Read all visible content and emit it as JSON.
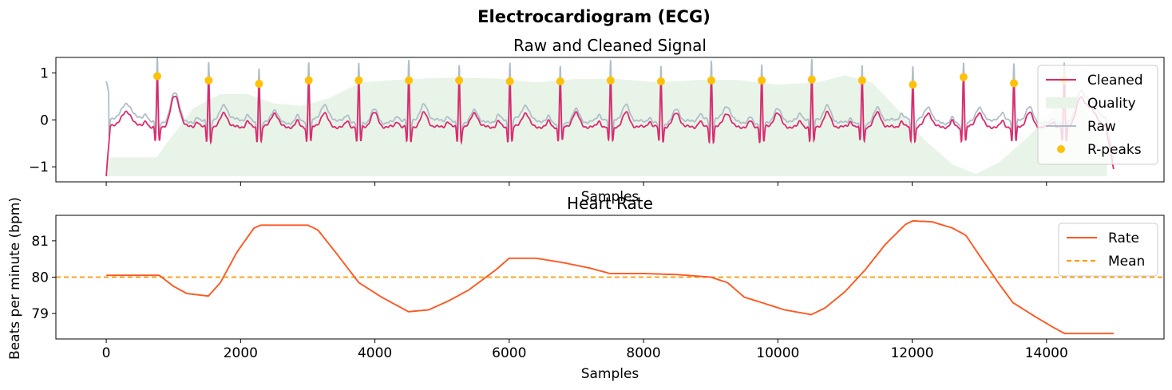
{
  "figure": {
    "title": "Electrocardiogram (ECG)"
  },
  "chart_data": [
    {
      "type": "line",
      "title": "Raw and Cleaned Signal",
      "xlabel": "Samples",
      "ylabel": "",
      "xlim": [
        -750,
        15750
      ],
      "ylim": [
        -1.32,
        1.33
      ],
      "yticks": [
        -1,
        0,
        1
      ],
      "ytick_labels": [
        "−1",
        "0",
        "1"
      ],
      "xticks": [
        0,
        2000,
        4000,
        6000,
        8000,
        10000,
        12000,
        14000
      ],
      "xtick_labels_visible": false,
      "legend": {
        "placement": "top-right",
        "entries": [
          {
            "label": "Cleaned",
            "kind": "line",
            "color": "#dc2a6e"
          },
          {
            "label": "Quality",
            "kind": "patch",
            "color": "#e8f4e8"
          },
          {
            "label": "Raw",
            "kind": "line",
            "color": "#b0bec8"
          },
          {
            "label": "R-peaks",
            "kind": "marker",
            "color": "#ffc107"
          }
        ]
      },
      "colors": {
        "cleaned": "#dc2a6e",
        "raw": "#b0bec8",
        "quality": "#e8f4e8",
        "rpeaks": "#ffc107"
      },
      "r_peaks": {
        "x": [
          760,
          1525,
          2275,
          3015,
          3760,
          4505,
          5255,
          6010,
          6760,
          7510,
          8260,
          9010,
          9760,
          10505,
          11255,
          12010,
          12765,
          13515,
          14265
        ],
        "y": [
          0.93,
          0.84,
          0.77,
          0.84,
          0.84,
          0.84,
          0.84,
          0.82,
          0.82,
          0.84,
          0.82,
          0.84,
          0.84,
          0.86,
          0.84,
          0.75,
          0.91,
          0.78,
          0.85
        ]
      },
      "quality": {
        "x": [
          0,
          300,
          750,
          900,
          1300,
          1700,
          2100,
          2500,
          2900,
          3300,
          3800,
          4500,
          5200,
          5800,
          6400,
          7000,
          7600,
          8200,
          8800,
          9400,
          10000,
          10600,
          11000,
          11400,
          11800,
          12200,
          12600,
          12950,
          13300,
          13700,
          14100,
          14500,
          14900
        ],
        "y": [
          -0.8,
          -0.8,
          -0.8,
          -0.5,
          0.25,
          0.55,
          0.55,
          0.35,
          0.3,
          0.45,
          0.8,
          0.87,
          0.9,
          0.88,
          0.8,
          0.87,
          0.87,
          0.8,
          0.85,
          0.85,
          0.75,
          0.8,
          0.95,
          0.8,
          0.2,
          -0.45,
          -0.95,
          -1.15,
          -0.9,
          -0.4,
          0.2,
          0.55,
          -0.9
        ],
        "baseline": -1.2
      }
    },
    {
      "type": "line",
      "title": "Heart Rate",
      "xlabel": "Samples",
      "ylabel": "Beats per minute (bpm)",
      "xlim": [
        -750,
        15750
      ],
      "ylim": [
        78.3,
        81.7
      ],
      "yticks": [
        79,
        80,
        81
      ],
      "xticks": [
        0,
        2000,
        4000,
        6000,
        8000,
        10000,
        12000,
        14000
      ],
      "legend": {
        "placement": "top-right",
        "entries": [
          {
            "label": "Rate",
            "kind": "line",
            "color": "#ff5722"
          },
          {
            "label": "Mean",
            "kind": "dashed",
            "color": "#ff9800"
          }
        ]
      },
      "series": [
        {
          "name": "Rate",
          "color": "#ff5722",
          "x": [
            0,
            400,
            790,
            1000,
            1200,
            1520,
            1700,
            1950,
            2200,
            2300,
            2600,
            3000,
            3150,
            3450,
            3760,
            4100,
            4500,
            4800,
            5100,
            5400,
            5800,
            6000,
            6400,
            6800,
            7200,
            7500,
            8000,
            8500,
            9000,
            9250,
            9500,
            9760,
            10100,
            10500,
            10700,
            11000,
            11300,
            11600,
            11900,
            12010,
            12300,
            12600,
            12800,
            13000,
            13300,
            13500,
            13800,
            14100,
            14270,
            14600,
            15000
          ],
          "y": [
            80.05,
            80.05,
            80.05,
            79.75,
            79.55,
            79.48,
            79.85,
            80.7,
            81.35,
            81.43,
            81.43,
            81.43,
            81.3,
            80.6,
            79.85,
            79.45,
            79.05,
            79.1,
            79.35,
            79.65,
            80.2,
            80.52,
            80.52,
            80.4,
            80.25,
            80.1,
            80.1,
            80.07,
            80.0,
            79.85,
            79.45,
            79.3,
            79.1,
            78.97,
            79.15,
            79.6,
            80.2,
            80.9,
            81.45,
            81.55,
            81.52,
            81.35,
            81.15,
            80.6,
            79.8,
            79.3,
            78.95,
            78.62,
            78.45,
            78.45,
            78.45
          ]
        }
      ],
      "mean": 80.0
    }
  ]
}
